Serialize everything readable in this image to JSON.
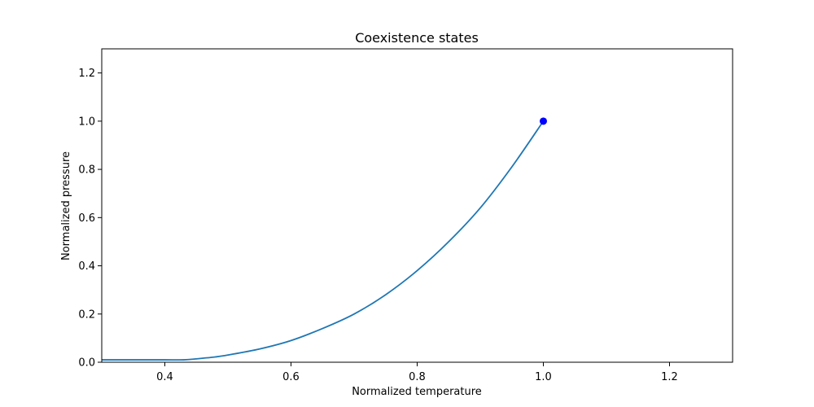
{
  "chart_data": {
    "type": "line",
    "title": "Coexistence states",
    "xlabel": "Normalized temperature",
    "ylabel": "Normalized pressure",
    "xlim": [
      0.3,
      1.3
    ],
    "ylim": [
      0.0,
      1.3
    ],
    "grid": false,
    "x_ticks": [
      0.4,
      0.6,
      0.8,
      1.0,
      1.2
    ],
    "x_tick_labels": [
      "0.4",
      "0.6",
      "0.8",
      "1.0",
      "1.2"
    ],
    "y_ticks": [
      0.0,
      0.2,
      0.4,
      0.6,
      0.8,
      1.0,
      1.2
    ],
    "y_tick_labels": [
      "0.0",
      "0.2",
      "0.4",
      "0.6",
      "0.8",
      "1.0",
      "1.2"
    ],
    "series": [
      {
        "color": "#1f77b4",
        "x": [
          0.3,
          0.35,
          0.4,
          0.43,
          0.45,
          0.48,
          0.5,
          0.55,
          0.6,
          0.65,
          0.7,
          0.75,
          0.8,
          0.85,
          0.9,
          0.95,
          1.0
        ],
        "y": [
          0.01,
          0.01,
          0.01,
          0.01,
          0.014,
          0.022,
          0.03,
          0.055,
          0.09,
          0.14,
          0.2,
          0.28,
          0.38,
          0.5,
          0.64,
          0.81,
          1.0
        ]
      }
    ],
    "points": [
      {
        "color": "#0000ff",
        "x": 1.0,
        "y": 1.0
      }
    ]
  }
}
